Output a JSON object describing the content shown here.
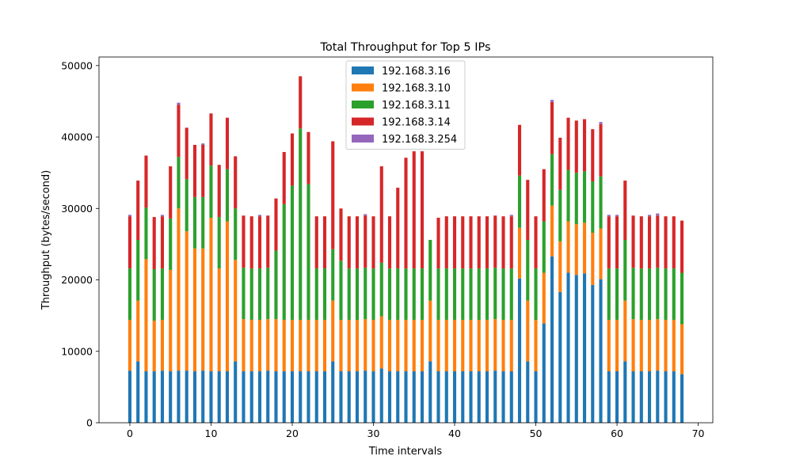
{
  "chart_data": {
    "type": "bar",
    "stacked": true,
    "title": "Total Throughput for Top 5 IPs",
    "xlabel": "Time intervals",
    "ylabel": "Throughput (bytes/second)",
    "xlim": [
      -3.8,
      71.8
    ],
    "ylim": [
      0,
      51200
    ],
    "xticks": [
      0,
      10,
      20,
      30,
      40,
      50,
      60,
      70
    ],
    "yticks": [
      0,
      10000,
      20000,
      30000,
      40000,
      50000
    ],
    "grid": false,
    "legend_position": "top-center",
    "x": [
      0,
      1,
      2,
      3,
      4,
      5,
      6,
      7,
      8,
      9,
      10,
      11,
      12,
      13,
      14,
      15,
      16,
      17,
      18,
      19,
      20,
      21,
      22,
      23,
      24,
      25,
      26,
      27,
      28,
      29,
      30,
      31,
      32,
      33,
      34,
      35,
      36,
      37,
      38,
      39,
      40,
      41,
      42,
      43,
      44,
      45,
      46,
      47,
      48,
      49,
      50,
      51,
      52,
      53,
      54,
      55,
      56,
      57,
      58,
      59,
      60,
      61,
      62,
      63,
      64,
      65,
      66,
      67,
      68
    ],
    "series": [
      {
        "name": "192.168.3.16",
        "color": "#1f77b4",
        "values": [
          7300,
          8600,
          7200,
          7200,
          7300,
          7200,
          7300,
          7300,
          7200,
          7300,
          7200,
          7200,
          7200,
          8600,
          7200,
          7200,
          7200,
          7300,
          7200,
          7200,
          7200,
          7200,
          7200,
          7200,
          7200,
          8600,
          7200,
          7200,
          7200,
          7300,
          7200,
          7600,
          7200,
          7200,
          7200,
          7200,
          7200,
          8600,
          7200,
          7200,
          7200,
          7200,
          7200,
          7200,
          7200,
          7300,
          7200,
          7200,
          20200,
          8600,
          7200,
          13900,
          23300,
          18300,
          21000,
          20700,
          20900,
          19300,
          20100,
          7200,
          7200,
          8600,
          7200,
          7200,
          7200,
          7300,
          7200,
          7200,
          6800
        ]
      },
      {
        "name": "192.168.3.10",
        "color": "#ff7f0e",
        "values": [
          7100,
          8500,
          15700,
          7100,
          7100,
          14200,
          22700,
          19500,
          17200,
          17100,
          21500,
          14400,
          21000,
          14200,
          7300,
          7200,
          7200,
          7200,
          7300,
          7200,
          7200,
          7200,
          7200,
          7200,
          7200,
          8500,
          7200,
          7200,
          7200,
          7200,
          7200,
          7300,
          7200,
          7200,
          7200,
          7200,
          7200,
          8500,
          7200,
          7200,
          7200,
          7200,
          7200,
          7200,
          7200,
          7200,
          7200,
          7200,
          7100,
          8500,
          7200,
          7100,
          7100,
          7100,
          7200,
          7100,
          7100,
          7300,
          7100,
          7200,
          7200,
          8500,
          7300,
          7200,
          7200,
          7200,
          7200,
          7200,
          7000
        ]
      },
      {
        "name": "192.168.3.11",
        "color": "#2ca02c",
        "values": [
          7200,
          8500,
          7200,
          7200,
          7200,
          7200,
          7200,
          7300,
          7200,
          7200,
          7300,
          7200,
          7300,
          7200,
          7200,
          7200,
          7200,
          7200,
          9600,
          16200,
          18800,
          26800,
          19000,
          7200,
          7200,
          7200,
          8300,
          7200,
          7200,
          7200,
          7200,
          7500,
          7200,
          7200,
          7200,
          7200,
          7200,
          8500,
          7200,
          7200,
          7200,
          7200,
          7200,
          7200,
          7200,
          7200,
          7200,
          7200,
          7300,
          8500,
          7200,
          7200,
          7200,
          7200,
          7200,
          7200,
          7200,
          7200,
          7300,
          7200,
          7200,
          8500,
          7200,
          7200,
          7200,
          7200,
          7200,
          7200,
          7200
        ]
      },
      {
        "name": "192.168.3.14",
        "color": "#d62728",
        "values": [
          7300,
          8300,
          7300,
          7300,
          7300,
          7300,
          7300,
          7200,
          7300,
          7300,
          7300,
          7300,
          7200,
          7300,
          7300,
          7300,
          7300,
          7300,
          7300,
          7300,
          7300,
          7300,
          7300,
          7300,
          7300,
          15100,
          7300,
          7300,
          7300,
          7300,
          7300,
          13500,
          7300,
          11300,
          15500,
          16400,
          16400,
          0,
          7100,
          7300,
          7300,
          7300,
          7300,
          7300,
          7300,
          7300,
          7300,
          7300,
          7100,
          8400,
          7300,
          7300,
          7300,
          7300,
          7300,
          7300,
          7300,
          7300,
          7300,
          7300,
          7300,
          8300,
          7300,
          7300,
          7300,
          7300,
          7300,
          7300,
          7300
        ]
      },
      {
        "name": "192.168.3.254",
        "color": "#9467bd",
        "values": [
          200,
          0,
          0,
          0,
          200,
          0,
          300,
          0,
          0,
          200,
          0,
          0,
          0,
          0,
          0,
          0,
          200,
          0,
          0,
          0,
          0,
          0,
          0,
          0,
          0,
          0,
          0,
          0,
          0,
          200,
          0,
          0,
          0,
          0,
          0,
          0,
          0,
          0,
          0,
          0,
          0,
          0,
          0,
          0,
          0,
          0,
          0,
          200,
          0,
          0,
          0,
          0,
          300,
          0,
          0,
          0,
          0,
          0,
          300,
          200,
          200,
          0,
          0,
          0,
          200,
          300,
          0,
          0,
          0
        ]
      }
    ]
  }
}
